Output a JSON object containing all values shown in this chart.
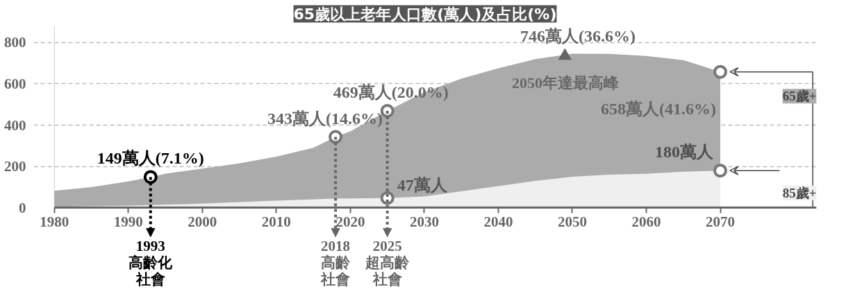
{
  "chart_data": {
    "type": "area",
    "title": "65歲以上老年人口數(萬人)及占比(%)",
    "xlim": [
      1980,
      2083
    ],
    "xticks": [
      1980,
      1990,
      2000,
      2010,
      2020,
      2030,
      2040,
      2050,
      2060,
      2070
    ],
    "ylim": [
      0,
      880
    ],
    "yticks": [
      0,
      200,
      400,
      600,
      800
    ],
    "grid": "y",
    "series": [
      {
        "name": "65歲+",
        "color": "#ababab",
        "x": [
          1980,
          1985,
          1990,
          1993,
          1995,
          2000,
          2005,
          2010,
          2015,
          2018,
          2020,
          2025,
          2030,
          2035,
          2040,
          2045,
          2050,
          2055,
          2060,
          2065,
          2070
        ],
        "values": [
          82,
          100,
          128,
          149,
          165,
          190,
          215,
          248,
          290,
          343,
          370,
          469,
          560,
          625,
          675,
          720,
          746,
          745,
          735,
          715,
          658
        ]
      },
      {
        "name": "85歲+",
        "color": "#efefef",
        "x": [
          1980,
          1990,
          2000,
          2010,
          2018,
          2025,
          2030,
          2035,
          2040,
          2045,
          2050,
          2055,
          2060,
          2065,
          2070
        ],
        "values": [
          5,
          10,
          20,
          35,
          45,
          47,
          55,
          80,
          105,
          130,
          150,
          160,
          165,
          175,
          180
        ]
      },
      {
        "type": "scatter",
        "marker": "circle",
        "x": [
          1993,
          2018,
          2025,
          2070,
          2025,
          2070
        ],
        "values": [
          149,
          343,
          469,
          658,
          47,
          180
        ],
        "colors": [
          "#000000",
          "#777777",
          "#777777",
          "#777777",
          "#777777",
          "#777777"
        ]
      },
      {
        "type": "scatter",
        "marker": "triangle",
        "x": [
          2049
        ],
        "values": [
          735
        ],
        "color": "#666666"
      }
    ],
    "annotations": [
      {
        "text": "149萬人(7.1%)",
        "x": 1993,
        "y": 149
      },
      {
        "text": "343萬人(14.6%)",
        "x": 2018,
        "y": 343
      },
      {
        "text": "469萬人(20.0%)",
        "x": 2025,
        "y": 469
      },
      {
        "text": "47萬人",
        "x": 2025,
        "y": 47
      },
      {
        "text": "746萬人(36.6%)",
        "x": 2050,
        "y": 746
      },
      {
        "text": "2050年達最高峰",
        "x": 2050,
        "y": 746
      },
      {
        "text": "658萬人(41.6%)",
        "x": 2070,
        "y": 658
      },
      {
        "text": "180萬人",
        "x": 2070,
        "y": 180
      },
      {
        "text": "1993高齡化社會",
        "x": 1993,
        "y": 149
      },
      {
        "text": "2018高齡社會",
        "x": 2018,
        "y": 343
      },
      {
        "text": "2025超高齡社會",
        "x": 2025,
        "y": 469
      }
    ]
  }
}
